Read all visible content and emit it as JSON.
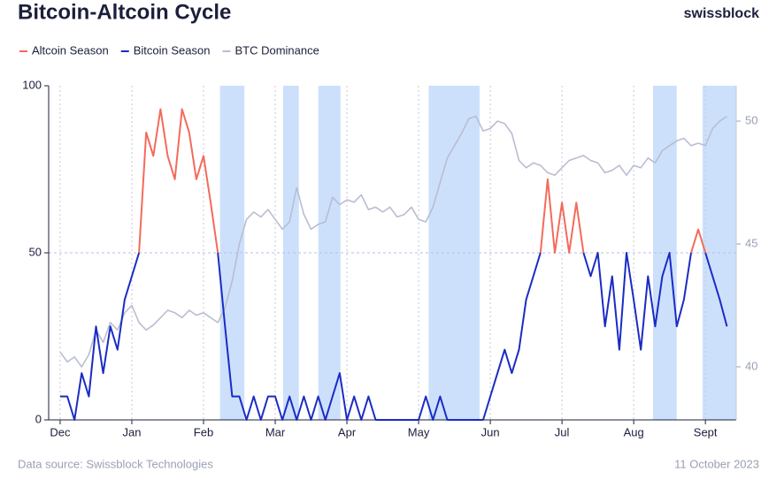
{
  "chart_data": {
    "type": "line",
    "title": "Bitcoin-Altcoin Cycle",
    "brand": "swissblock",
    "source": "Data source: Swissblock Technologies",
    "date": "11 October 2023",
    "x": [
      0.0,
      0.1,
      0.2,
      0.3,
      0.4,
      0.5,
      0.6,
      0.7,
      0.8,
      0.9,
      1.0,
      1.1,
      1.2,
      1.3,
      1.4,
      1.5,
      1.6,
      1.7,
      1.8,
      1.9,
      2.0,
      2.1,
      2.2,
      2.3,
      2.4,
      2.5,
      2.6,
      2.7,
      2.8,
      2.9,
      3.0,
      3.1,
      3.2,
      3.3,
      3.4,
      3.5,
      3.6,
      3.7,
      3.8,
      3.9,
      4.0,
      4.1,
      4.2,
      4.3,
      4.4,
      4.5,
      4.6,
      4.7,
      4.8,
      4.9,
      5.0,
      5.1,
      5.2,
      5.3,
      5.4,
      5.5,
      5.6,
      5.7,
      5.8,
      5.9,
      6.0,
      6.1,
      6.2,
      6.3,
      6.4,
      6.5,
      6.6,
      6.7,
      6.8,
      6.9,
      7.0,
      7.1,
      7.2,
      7.3,
      7.4,
      7.5,
      7.6,
      7.7,
      7.8,
      7.9,
      8.0,
      8.1,
      8.2,
      8.3,
      8.4,
      8.5,
      8.6,
      8.7,
      8.8,
      8.9,
      9.0,
      9.1,
      9.2,
      9.3
    ],
    "series": [
      {
        "name": "Altcoin Season",
        "color": "#f26b5b",
        "values": [
          null,
          null,
          null,
          null,
          null,
          null,
          null,
          null,
          null,
          null,
          null,
          50,
          86,
          79,
          93,
          79,
          72,
          93,
          86,
          72,
          79,
          65,
          50,
          null,
          null,
          null,
          null,
          null,
          null,
          null,
          null,
          null,
          null,
          null,
          null,
          null,
          null,
          null,
          null,
          null,
          null,
          null,
          null,
          null,
          null,
          null,
          null,
          null,
          null,
          null,
          null,
          null,
          null,
          null,
          null,
          null,
          null,
          null,
          null,
          null,
          null,
          null,
          null,
          null,
          null,
          null,
          null,
          50,
          72,
          50,
          65,
          50,
          65,
          50,
          null,
          50,
          null,
          null,
          null,
          50,
          null,
          null,
          null,
          null,
          null,
          50,
          null,
          null,
          50,
          57,
          50,
          null,
          null,
          null
        ]
      },
      {
        "name": "Bitcoin Season",
        "color": "#1a2cc4",
        "values": [
          7,
          7,
          0,
          14,
          7,
          28,
          14,
          28,
          21,
          36,
          43,
          50,
          null,
          null,
          null,
          null,
          null,
          null,
          null,
          null,
          null,
          null,
          50,
          28,
          7,
          7,
          0,
          7,
          0,
          7,
          7,
          0,
          7,
          0,
          7,
          0,
          7,
          0,
          7,
          14,
          0,
          7,
          0,
          7,
          0,
          0,
          0,
          0,
          0,
          0,
          0,
          7,
          0,
          7,
          0,
          0,
          0,
          0,
          0,
          0,
          7,
          14,
          21,
          14,
          21,
          36,
          43,
          50,
          null,
          50,
          null,
          50,
          null,
          50,
          43,
          50,
          28,
          43,
          21,
          50,
          36,
          21,
          43,
          28,
          43,
          50,
          28,
          36,
          50,
          null,
          50,
          43,
          36,
          28
        ]
      },
      {
        "name": "BTC Dominance",
        "color": "#b9bdd2",
        "axis": "y2",
        "values": [
          40.6,
          40.2,
          40.4,
          40.0,
          40.5,
          41.5,
          41.0,
          41.8,
          41.5,
          42.2,
          42.5,
          41.8,
          41.5,
          41.7,
          42.0,
          42.3,
          42.2,
          42.0,
          42.3,
          42.1,
          42.2,
          42.0,
          41.8,
          42.4,
          43.5,
          45.0,
          46.0,
          46.3,
          46.1,
          46.4,
          46.0,
          45.6,
          45.9,
          47.3,
          46.2,
          45.6,
          45.8,
          45.9,
          46.9,
          46.6,
          46.8,
          46.7,
          47.0,
          46.4,
          46.5,
          46.3,
          46.5,
          46.1,
          46.2,
          46.5,
          46.0,
          45.9,
          46.5,
          47.5,
          48.5,
          49.0,
          49.5,
          50.1,
          50.2,
          49.6,
          49.7,
          50.0,
          49.9,
          49.5,
          48.4,
          48.1,
          48.3,
          48.2,
          47.9,
          47.8,
          48.1,
          48.4,
          48.5,
          48.6,
          48.4,
          48.3,
          47.9,
          48.0,
          48.2,
          47.8,
          48.2,
          48.1,
          48.5,
          48.3,
          48.8,
          49.0,
          49.2,
          49.3,
          49.0,
          49.1,
          49.0,
          49.7,
          50.0,
          50.2
        ]
      }
    ],
    "shaded_regions": [
      [
        2.23,
        2.57
      ],
      [
        3.11,
        3.33
      ],
      [
        3.6,
        3.91
      ],
      [
        5.14,
        5.85
      ],
      [
        8.27,
        8.6
      ],
      [
        8.96,
        9.43
      ]
    ],
    "shade_color": "#cce0fb",
    "xlim": [
      -0.16,
      9.43
    ],
    "xticks": [
      {
        "value": 0,
        "label": "Dec"
      },
      {
        "value": 1,
        "label": "Jan"
      },
      {
        "value": 2,
        "label": "Feb"
      },
      {
        "value": 3,
        "label": "Mar"
      },
      {
        "value": 4,
        "label": "Apr"
      },
      {
        "value": 5,
        "label": "May"
      },
      {
        "value": 6,
        "label": "Jun"
      },
      {
        "value": 7,
        "label": "Jul"
      },
      {
        "value": 8,
        "label": "Aug"
      },
      {
        "value": 9,
        "label": "Sept"
      }
    ],
    "ylim": [
      0,
      100
    ],
    "yticks": [
      0,
      50,
      100
    ],
    "y2lim": [
      37.84,
      51.44
    ],
    "y2ticks": [
      40,
      45,
      50
    ],
    "grid": true
  }
}
